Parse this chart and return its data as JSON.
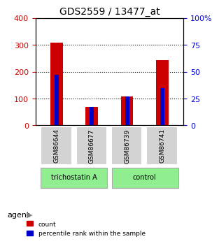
{
  "title": "GDS2559 / 13477_at",
  "samples": [
    "GSM86644",
    "GSM86677",
    "GSM86739",
    "GSM86741"
  ],
  "counts": [
    308,
    68,
    108,
    242
  ],
  "percentiles": [
    47,
    17,
    27,
    35
  ],
  "groups": [
    "trichostatin A",
    "trichostatin A",
    "control",
    "control"
  ],
  "group_colors": {
    "trichostatin A": "#90EE90",
    "control": "#90EE90"
  },
  "bar_width": 0.35,
  "ylim_left": [
    0,
    400
  ],
  "ylim_right": [
    0,
    100
  ],
  "yticks_left": [
    0,
    100,
    200,
    300,
    400
  ],
  "yticks_right": [
    0,
    25,
    50,
    75,
    100
  ],
  "yticklabels_left": [
    "0",
    "100",
    "200",
    "300",
    "400"
  ],
  "yticklabels_right": [
    "0",
    "25",
    "50",
    "75",
    "100%"
  ],
  "count_color": "#CC0000",
  "percentile_color": "#0000CC",
  "bg_color": "#f0f0f0",
  "plot_bg": "#ffffff",
  "label_count": "count",
  "label_pct": "percentile rank within the sample",
  "agent_label": "agent",
  "group_label_trichostatin": "trichostatin A",
  "group_label_control": "control"
}
